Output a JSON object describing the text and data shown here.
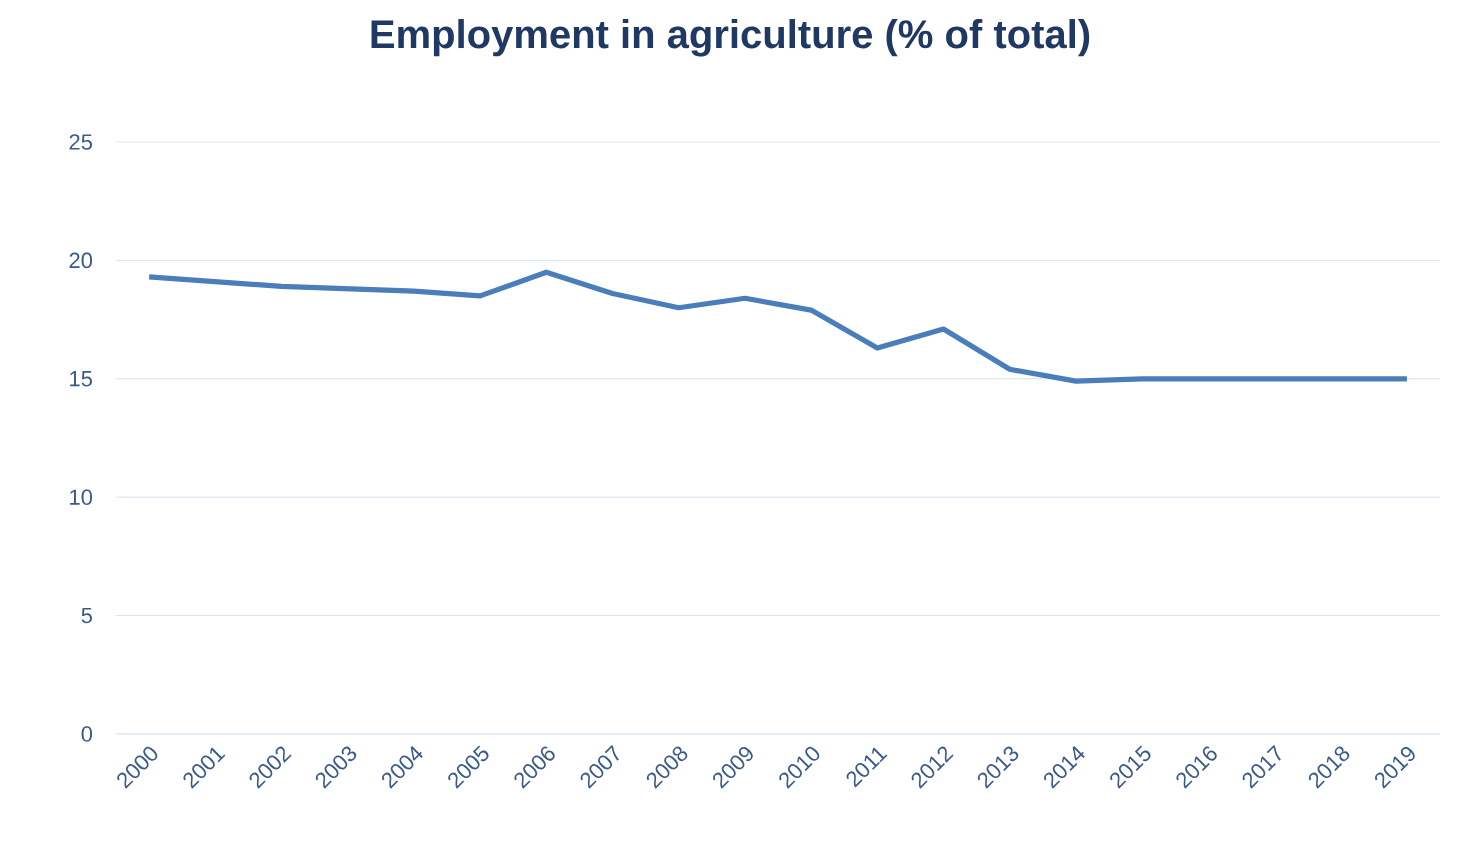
{
  "chart_data": {
    "type": "line",
    "title": "Employment in agriculture (% of total)",
    "categories": [
      "2000",
      "2001",
      "2002",
      "2003",
      "2004",
      "2005",
      "2006",
      "2007",
      "2008",
      "2009",
      "2010",
      "2011",
      "2012",
      "2013",
      "2014",
      "2015",
      "2016",
      "2017",
      "2018",
      "2019"
    ],
    "series": [
      {
        "color": "#4a7ebb",
        "values": [
          19.3,
          19.1,
          18.9,
          18.8,
          18.7,
          18.5,
          19.5,
          18.6,
          18.0,
          18.4,
          17.9,
          16.3,
          17.1,
          15.4,
          14.9,
          15.0,
          15.0,
          15.0,
          15.0,
          15.0
        ]
      }
    ],
    "ylim": [
      0,
      25
    ],
    "yticks": [
      0,
      5,
      10,
      15,
      20,
      25
    ],
    "grid": "y",
    "marker": "none",
    "line_style": "solid"
  }
}
